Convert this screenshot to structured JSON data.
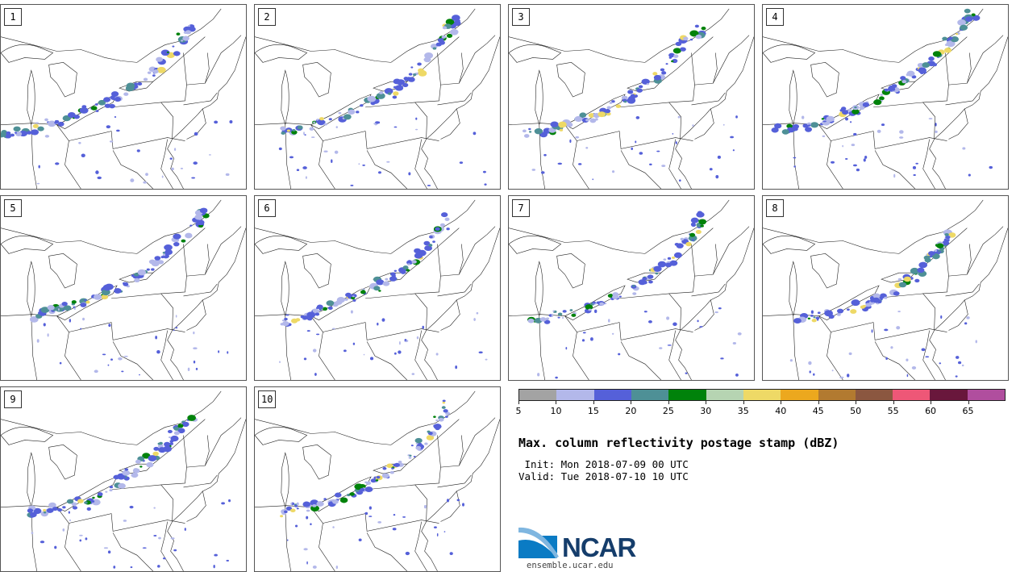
{
  "panels": [
    {
      "label": "1",
      "band": [
        [
          0.02,
          0.7
        ],
        [
          0.15,
          0.68
        ],
        [
          0.3,
          0.6
        ],
        [
          0.45,
          0.52
        ],
        [
          0.6,
          0.4
        ],
        [
          0.7,
          0.25
        ],
        [
          0.78,
          0.1
        ]
      ]
    },
    {
      "label": "2",
      "band": [
        [
          0.1,
          0.7
        ],
        [
          0.25,
          0.65
        ],
        [
          0.4,
          0.58
        ],
        [
          0.55,
          0.48
        ],
        [
          0.65,
          0.38
        ],
        [
          0.75,
          0.2
        ],
        [
          0.84,
          0.05
        ]
      ]
    },
    {
      "label": "3",
      "band": [
        [
          0.05,
          0.7
        ],
        [
          0.2,
          0.67
        ],
        [
          0.35,
          0.6
        ],
        [
          0.5,
          0.5
        ],
        [
          0.62,
          0.38
        ],
        [
          0.72,
          0.22
        ],
        [
          0.78,
          0.12
        ]
      ]
    },
    {
      "label": "4",
      "band": [
        [
          0.05,
          0.68
        ],
        [
          0.2,
          0.66
        ],
        [
          0.35,
          0.58
        ],
        [
          0.48,
          0.5
        ],
        [
          0.58,
          0.42
        ],
        [
          0.68,
          0.32
        ],
        [
          0.78,
          0.18
        ],
        [
          0.85,
          0.05
        ]
      ]
    },
    {
      "label": "5",
      "band": [
        [
          0.12,
          0.65
        ],
        [
          0.25,
          0.6
        ],
        [
          0.38,
          0.55
        ],
        [
          0.55,
          0.45
        ],
        [
          0.65,
          0.35
        ],
        [
          0.75,
          0.22
        ],
        [
          0.84,
          0.08
        ]
      ]
    },
    {
      "label": "6",
      "band": [
        [
          0.1,
          0.7
        ],
        [
          0.22,
          0.65
        ],
        [
          0.35,
          0.58
        ],
        [
          0.48,
          0.5
        ],
        [
          0.6,
          0.4
        ],
        [
          0.7,
          0.28
        ],
        [
          0.8,
          0.1
        ]
      ]
    },
    {
      "label": "7",
      "band": [
        [
          0.1,
          0.68
        ],
        [
          0.3,
          0.62
        ],
        [
          0.45,
          0.55
        ],
        [
          0.58,
          0.45
        ],
        [
          0.68,
          0.32
        ],
        [
          0.75,
          0.2
        ],
        [
          0.8,
          0.08
        ]
      ]
    },
    {
      "label": "8",
      "band": [
        [
          0.15,
          0.68
        ],
        [
          0.32,
          0.63
        ],
        [
          0.45,
          0.58
        ],
        [
          0.55,
          0.5
        ],
        [
          0.65,
          0.4
        ],
        [
          0.72,
          0.28
        ],
        [
          0.78,
          0.18
        ]
      ]
    },
    {
      "label": "9",
      "band": [
        [
          0.1,
          0.68
        ],
        [
          0.25,
          0.65
        ],
        [
          0.4,
          0.6
        ],
        [
          0.52,
          0.48
        ],
        [
          0.62,
          0.38
        ],
        [
          0.7,
          0.28
        ],
        [
          0.78,
          0.15
        ]
      ]
    },
    {
      "label": "10",
      "band": [
        [
          0.1,
          0.68
        ],
        [
          0.25,
          0.63
        ],
        [
          0.4,
          0.58
        ],
        [
          0.52,
          0.48
        ],
        [
          0.62,
          0.38
        ],
        [
          0.72,
          0.25
        ],
        [
          0.8,
          0.08
        ]
      ]
    }
  ],
  "colorbar": {
    "colors": [
      "#a3a3a3",
      "#b3b8ea",
      "#5560d9",
      "#4e9096",
      "#00820a",
      "#b6d4b2",
      "#eed966",
      "#eca81e",
      "#b27a30",
      "#8b5740",
      "#ee5777",
      "#69173c",
      "#b04e9e"
    ],
    "ticks": [
      "5",
      "10",
      "15",
      "20",
      "25",
      "30",
      "35",
      "40",
      "45",
      "50",
      "55",
      "60",
      "65"
    ]
  },
  "title": "Max. column reflectivity postage stamp (dBZ)",
  "init_line": " Init: Mon 2018-07-09 00 UTC",
  "valid_line": "Valid: Tue 2018-07-10 10 UTC",
  "logo": {
    "text": "NCAR",
    "url": "ensemble.ucar.edu",
    "colors": {
      "blue": "#0a7bc4",
      "navy": "#153d6b"
    }
  }
}
